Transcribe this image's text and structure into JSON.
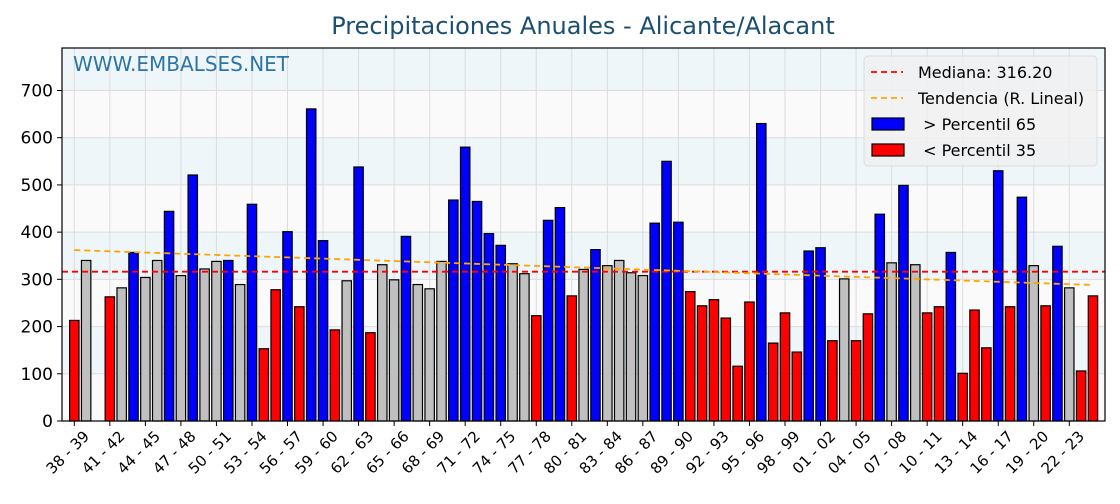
{
  "chart_data": {
    "type": "bar",
    "title": "Precipitaciones Anuales - Alicante/Alacant",
    "watermark": "WWW.EMBALSES.NET",
    "xlabel": "",
    "ylabel": "",
    "ylim": [
      0,
      790
    ],
    "y_ticks": [
      0,
      100,
      200,
      300,
      400,
      500,
      600,
      700
    ],
    "grid": true,
    "legend_position": "top-right",
    "x_start_years": [
      1938,
      1939,
      1940,
      1941,
      1942,
      1943,
      1944,
      1945,
      1946,
      1947,
      1948,
      1949,
      1950,
      1951,
      1952,
      1953,
      1954,
      1955,
      1956,
      1957,
      1958,
      1959,
      1960,
      1961,
      1962,
      1963,
      1964,
      1965,
      1966,
      1967,
      1968,
      1969,
      1970,
      1971,
      1972,
      1973,
      1974,
      1975,
      1976,
      1977,
      1978,
      1979,
      1980,
      1981,
      1982,
      1983,
      1984,
      1985,
      1986,
      1987,
      1988,
      1989,
      1990,
      1991,
      1992,
      1993,
      1994,
      1995,
      1996,
      1997,
      1998,
      1999,
      2000,
      2001,
      2002,
      2003,
      2004,
      2005,
      2006,
      2007,
      2008,
      2009,
      2010,
      2011,
      2012,
      2013,
      2014,
      2015,
      2016,
      2017,
      2018,
      2019,
      2020,
      2021,
      2022,
      2023,
      2024
    ],
    "values": [
      213,
      340,
      null,
      263,
      282,
      357,
      304,
      340,
      444,
      308,
      521,
      322,
      338,
      340,
      289,
      459,
      153,
      278,
      401,
      242,
      661,
      382,
      193,
      297,
      538,
      187,
      331,
      299,
      391,
      289,
      280,
      338,
      468,
      580,
      465,
      397,
      372,
      333,
      312,
      223,
      425,
      452,
      265,
      321,
      363,
      329,
      340,
      314,
      308,
      419,
      550,
      421,
      274,
      244,
      257,
      218,
      116,
      252,
      630,
      165,
      229,
      146,
      360,
      367,
      170,
      301,
      170,
      227,
      438,
      335,
      499,
      331,
      229,
      242,
      357,
      101,
      235,
      155,
      530,
      242,
      474,
      329,
      244,
      370,
      282,
      106,
      265
    ],
    "groups": [
      "l",
      "n",
      "n",
      "l",
      "n",
      "h",
      "n",
      "n",
      "h",
      "n",
      "h",
      "n",
      "n",
      "h",
      "n",
      "h",
      "l",
      "l",
      "h",
      "l",
      "h",
      "h",
      "l",
      "n",
      "h",
      "l",
      "n",
      "n",
      "h",
      "n",
      "n",
      "n",
      "h",
      "h",
      "h",
      "h",
      "h",
      "n",
      "n",
      "l",
      "h",
      "h",
      "l",
      "n",
      "h",
      "n",
      "n",
      "n",
      "n",
      "h",
      "h",
      "h",
      "l",
      "l",
      "l",
      "l",
      "l",
      "l",
      "h",
      "l",
      "l",
      "l",
      "h",
      "h",
      "l",
      "n",
      "l",
      "l",
      "h",
      "n",
      "h",
      "n",
      "l",
      "l",
      "h",
      "l",
      "l",
      "l",
      "h",
      "l",
      "h",
      "n",
      "l",
      "h",
      "n",
      "l",
      "l"
    ],
    "tick_labels": [
      "38 - 39",
      "41 - 42",
      "44 - 45",
      "47 - 48",
      "50 - 51",
      "53 - 54",
      "56 - 57",
      "59 - 60",
      "62 - 63",
      "65 - 66",
      "68 - 69",
      "71 - 72",
      "74 - 75",
      "77 - 78",
      "80 - 81",
      "83 - 84",
      "86 - 87",
      "89 - 90",
      "92 - 93",
      "95 - 96",
      "98 - 99",
      "01 - 02",
      "04 - 05",
      "07 - 08",
      "10 - 11",
      "13 - 14",
      "16 - 17",
      "19 - 20",
      "22 - 23"
    ],
    "median": 316.2,
    "trend": {
      "start": 362,
      "end": 288
    },
    "legend": [
      {
        "label": "Mediana: 316.20",
        "kind": "line",
        "color": "#ff0000"
      },
      {
        "label": "Tendencia (R. Lineal)",
        "kind": "line",
        "color": "#ffa500"
      },
      {
        "label": " > Percentil 65",
        "kind": "patch",
        "color": "#0000ff"
      },
      {
        "label": " < Percentil 35",
        "kind": "patch",
        "color": "#ff0000"
      }
    ],
    "colors": {
      "h": "#0000ff",
      "l": "#ff0000",
      "n": "#c0c0c0",
      "title": "#1b4f72",
      "watermark": "#2e75a6"
    }
  }
}
